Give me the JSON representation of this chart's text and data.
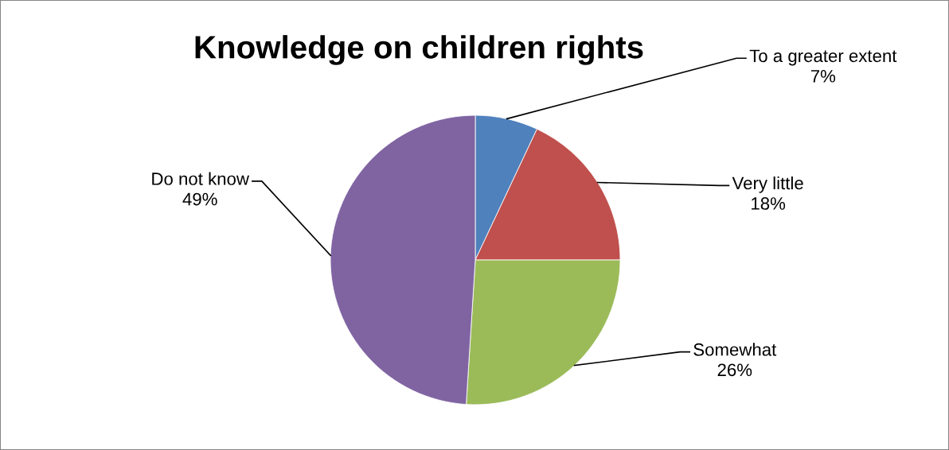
{
  "chart_data": {
    "type": "pie",
    "title": "Knowledge on children rights",
    "categories": [
      "To a greater extent",
      "Very little",
      "Somewhat",
      "Do not know"
    ],
    "values": [
      7,
      18,
      26,
      49
    ],
    "value_labels": [
      "7%",
      "18%",
      "26%",
      "49%"
    ],
    "colors": [
      "#4f81bd",
      "#c0504d",
      "#9bbb59",
      "#8064a2"
    ],
    "legend": false
  }
}
